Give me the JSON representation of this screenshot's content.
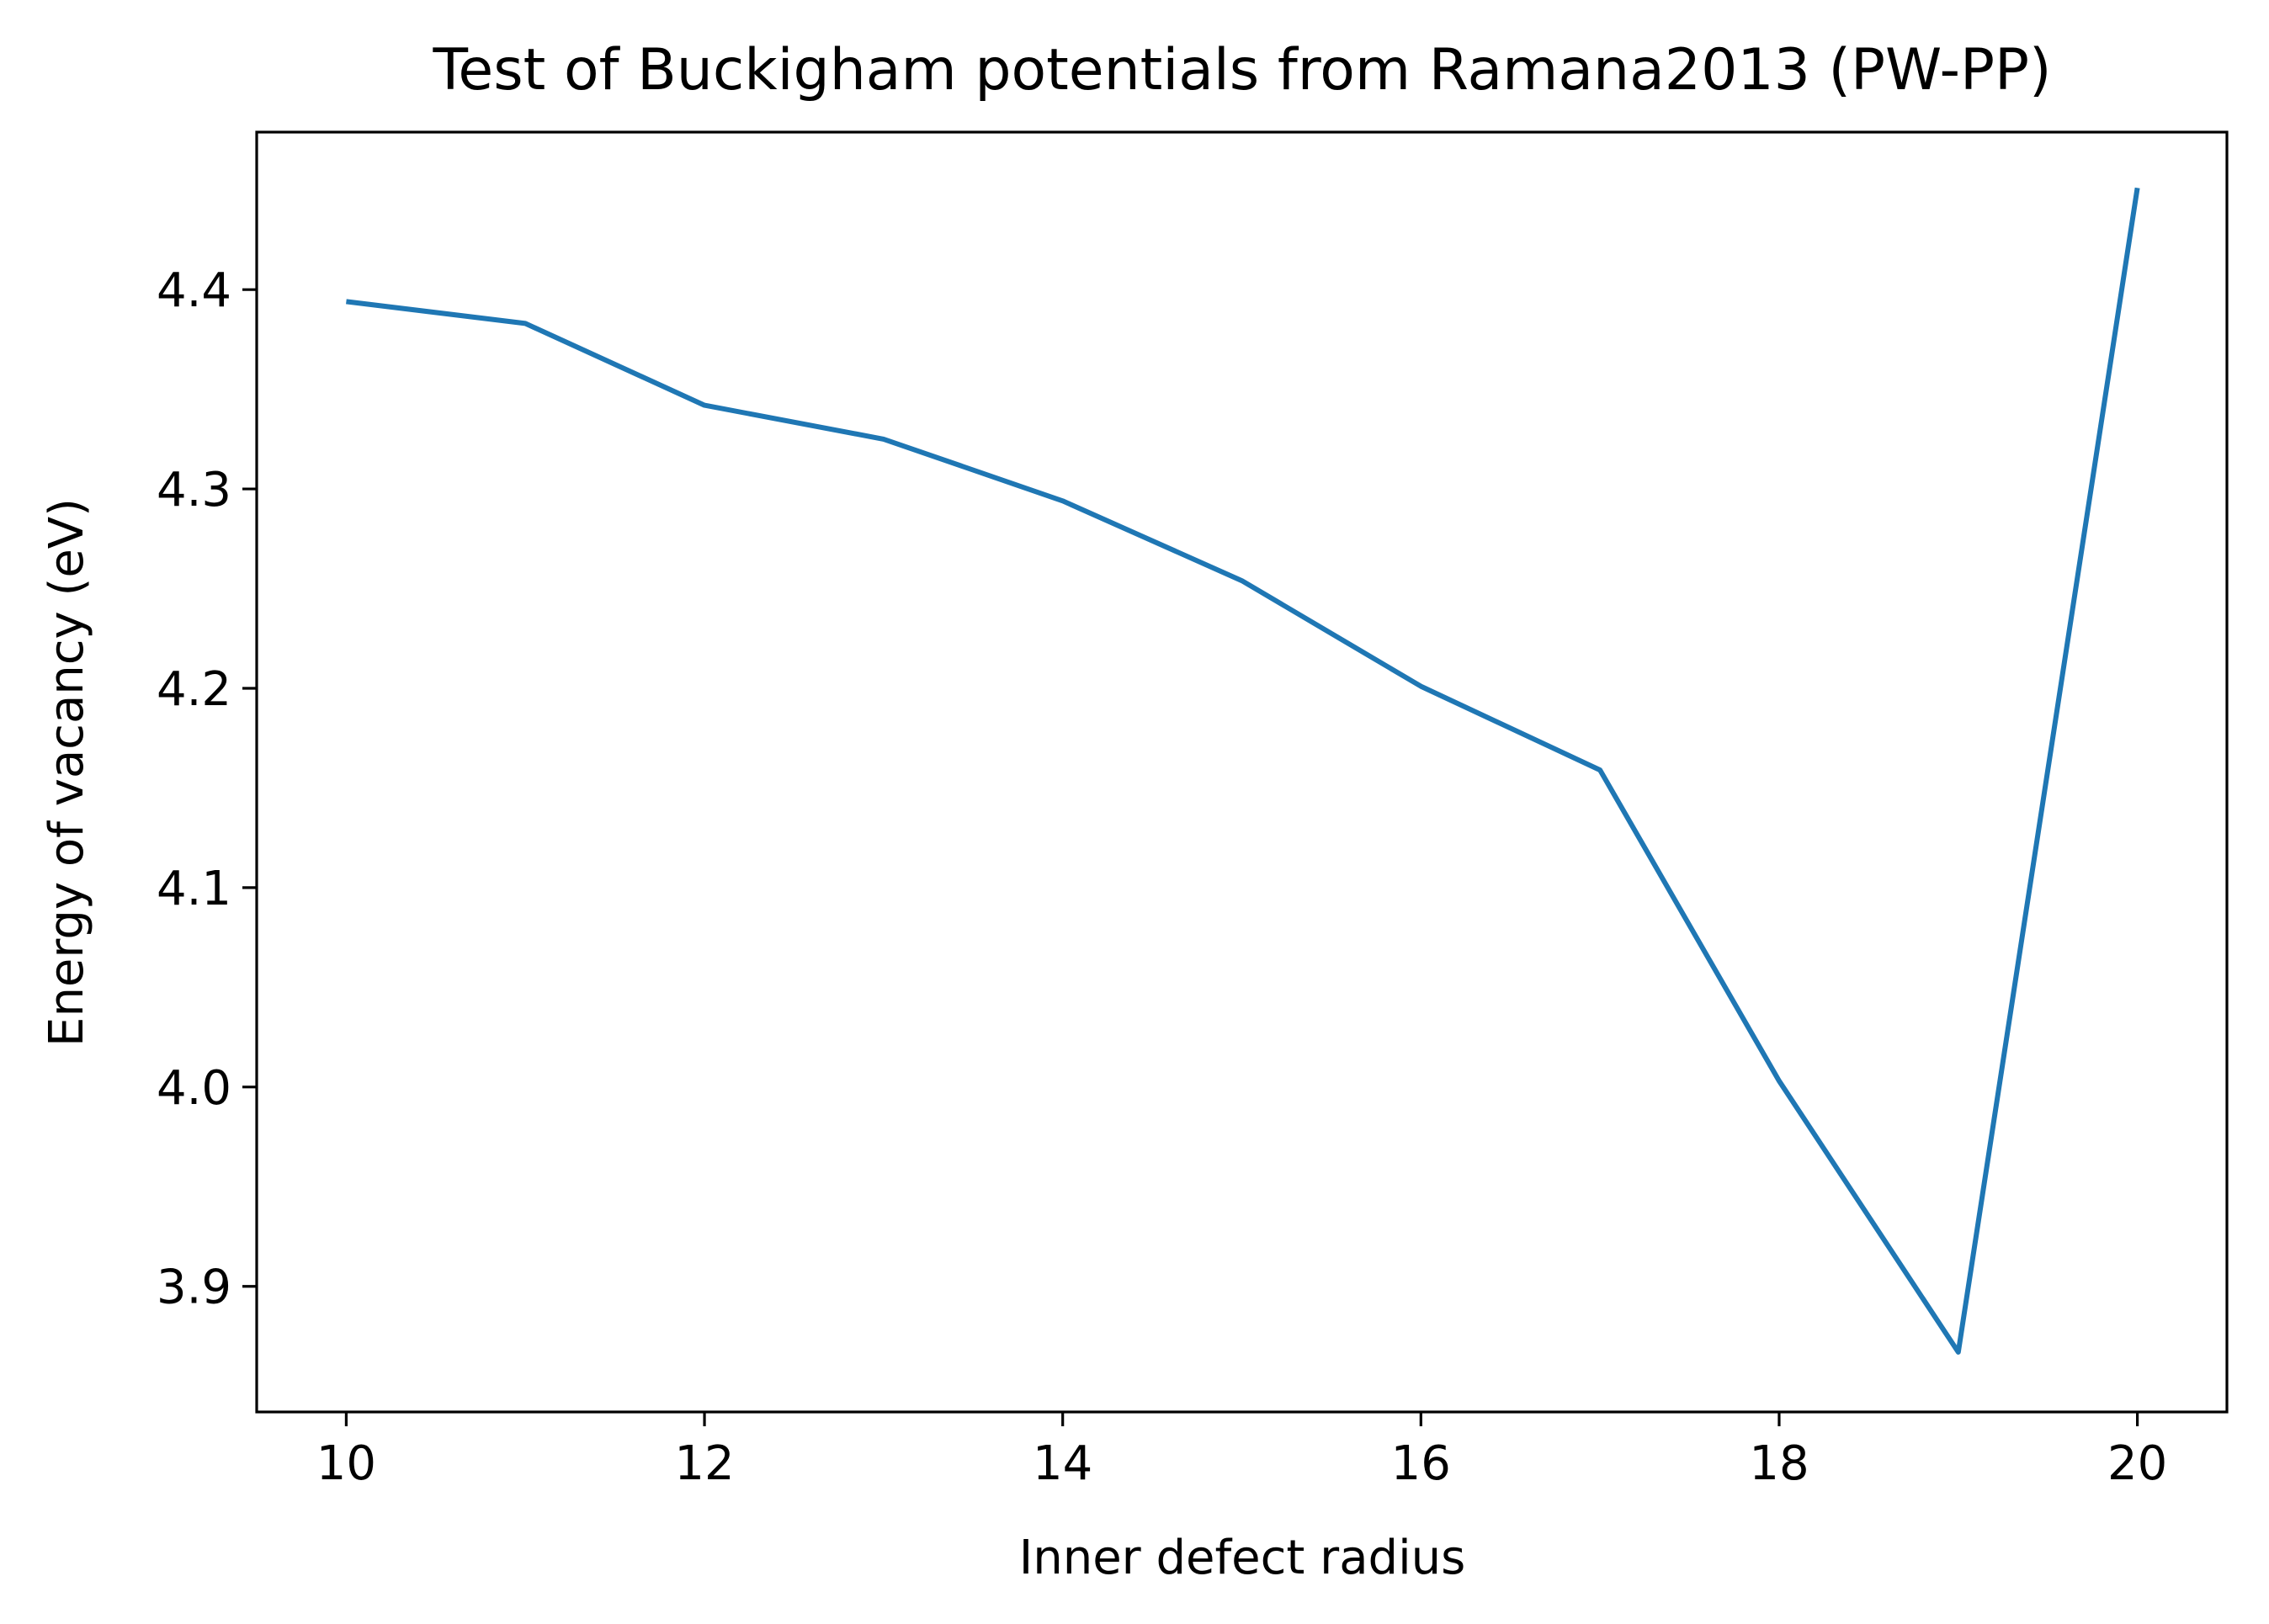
{
  "chart_data": {
    "type": "line",
    "title": "Test of Buckigham potentials from Ramana2013 (PW-PP)",
    "xlabel": "Inner defect radius",
    "ylabel": "Energy of vacancy (eV)",
    "xlim": [
      9.5,
      20.5
    ],
    "ylim": [
      3.837,
      4.479
    ],
    "x_ticks": [
      10,
      12,
      14,
      16,
      18,
      20
    ],
    "y_ticks": [
      3.9,
      4.0,
      4.1,
      4.2,
      4.3,
      4.4
    ],
    "x_tick_labels": [
      "10",
      "12",
      "14",
      "16",
      "18",
      "20"
    ],
    "y_tick_labels": [
      "3.9",
      "4.0",
      "4.1",
      "4.2",
      "4.3",
      "4.4"
    ],
    "grid": false,
    "series": [
      {
        "color": "#1f77b4",
        "x": [
          10,
          11,
          12,
          13,
          14,
          15,
          16,
          17,
          18,
          19,
          20
        ],
        "y": [
          4.394,
          4.383,
          4.342,
          4.325,
          4.294,
          4.254,
          4.201,
          4.159,
          4.003,
          3.867,
          4.451
        ]
      }
    ]
  }
}
